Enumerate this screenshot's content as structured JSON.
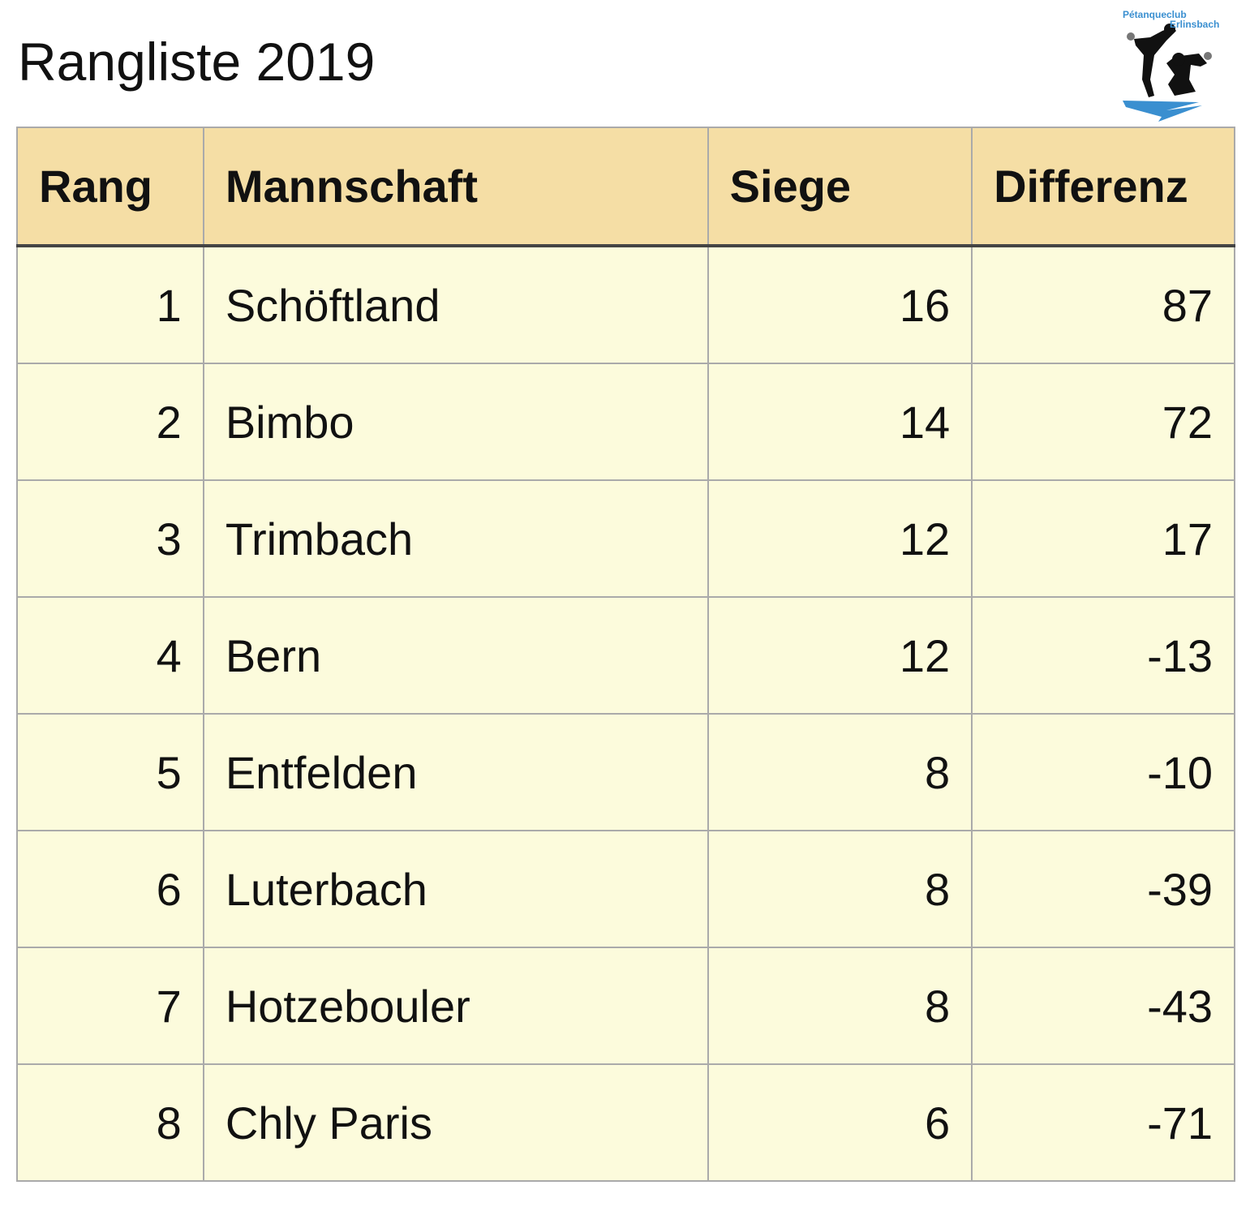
{
  "title": "Rangliste 2019",
  "logo": {
    "line1": "Pétanqueclub",
    "line2": "Erlinsbach"
  },
  "table": {
    "headers": [
      "Rang",
      "Mannschaft",
      "Siege",
      "Differenz"
    ],
    "rows": [
      {
        "rang": "1",
        "team": "Schöftland",
        "siege": "16",
        "diff": "87"
      },
      {
        "rang": "2",
        "team": "Bimbo",
        "siege": "14",
        "diff": "72"
      },
      {
        "rang": "3",
        "team": "Trimbach",
        "siege": "12",
        "diff": "17"
      },
      {
        "rang": "4",
        "team": "Bern",
        "siege": "12",
        "diff": "-13"
      },
      {
        "rang": "5",
        "team": "Entfelden",
        "siege": "8",
        "diff": "-10"
      },
      {
        "rang": "6",
        "team": "Luterbach",
        "siege": "8",
        "diff": "-39"
      },
      {
        "rang": "7",
        "team": "Hotzebouler",
        "siege": "8",
        "diff": "-43"
      },
      {
        "rang": "8",
        "team": "Chly Paris",
        "siege": "6",
        "diff": "-71"
      }
    ]
  }
}
